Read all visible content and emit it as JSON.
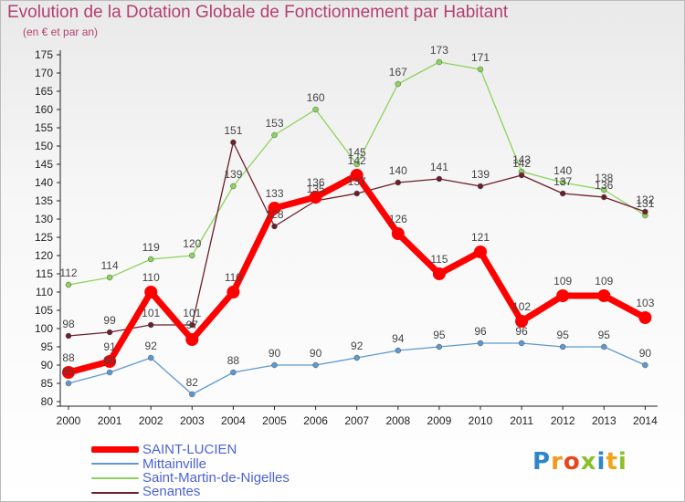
{
  "title": "Evolution de la Dotation Globale de Fonctionnement par Habitant",
  "subtitle": "(en € et par an)",
  "logo": "Proxiti",
  "chart_data": {
    "type": "line",
    "x": [
      "2000",
      "2001",
      "2002",
      "2003",
      "2004",
      "2005",
      "2006",
      "2007",
      "2008",
      "2009",
      "2010",
      "2011",
      "2012",
      "2013",
      "2014"
    ],
    "ylim": [
      80,
      175
    ],
    "yticks": [
      80,
      85,
      90,
      95,
      100,
      105,
      110,
      115,
      120,
      125,
      130,
      135,
      140,
      145,
      150,
      155,
      160,
      165,
      170,
      175
    ],
    "grid": false,
    "legend": "bottom-left",
    "series": [
      {
        "name": "SAINT-LUCIEN",
        "color": "#ff0000",
        "values": [
          88,
          91,
          110,
          97,
          110,
          133,
          136,
          142,
          126,
          115,
          121,
          102,
          109,
          109,
          103
        ]
      },
      {
        "name": "Mittainville",
        "color": "#5d99cf",
        "values": [
          85,
          88,
          92,
          82,
          88,
          90,
          90,
          92,
          94,
          95,
          96,
          96,
          95,
          95,
          90
        ]
      },
      {
        "name": "Saint-Martin-de-Nigelles",
        "color": "#8bd35b",
        "values": [
          112,
          114,
          119,
          120,
          139,
          153,
          160,
          145,
          167,
          173,
          171,
          143,
          140,
          138,
          131
        ]
      },
      {
        "name": "Senantes",
        "color": "#6b1f2a",
        "values": [
          98,
          99,
          101,
          101,
          151,
          128,
          135,
          137,
          140,
          141,
          139,
          142,
          137,
          136,
          132
        ]
      }
    ]
  }
}
